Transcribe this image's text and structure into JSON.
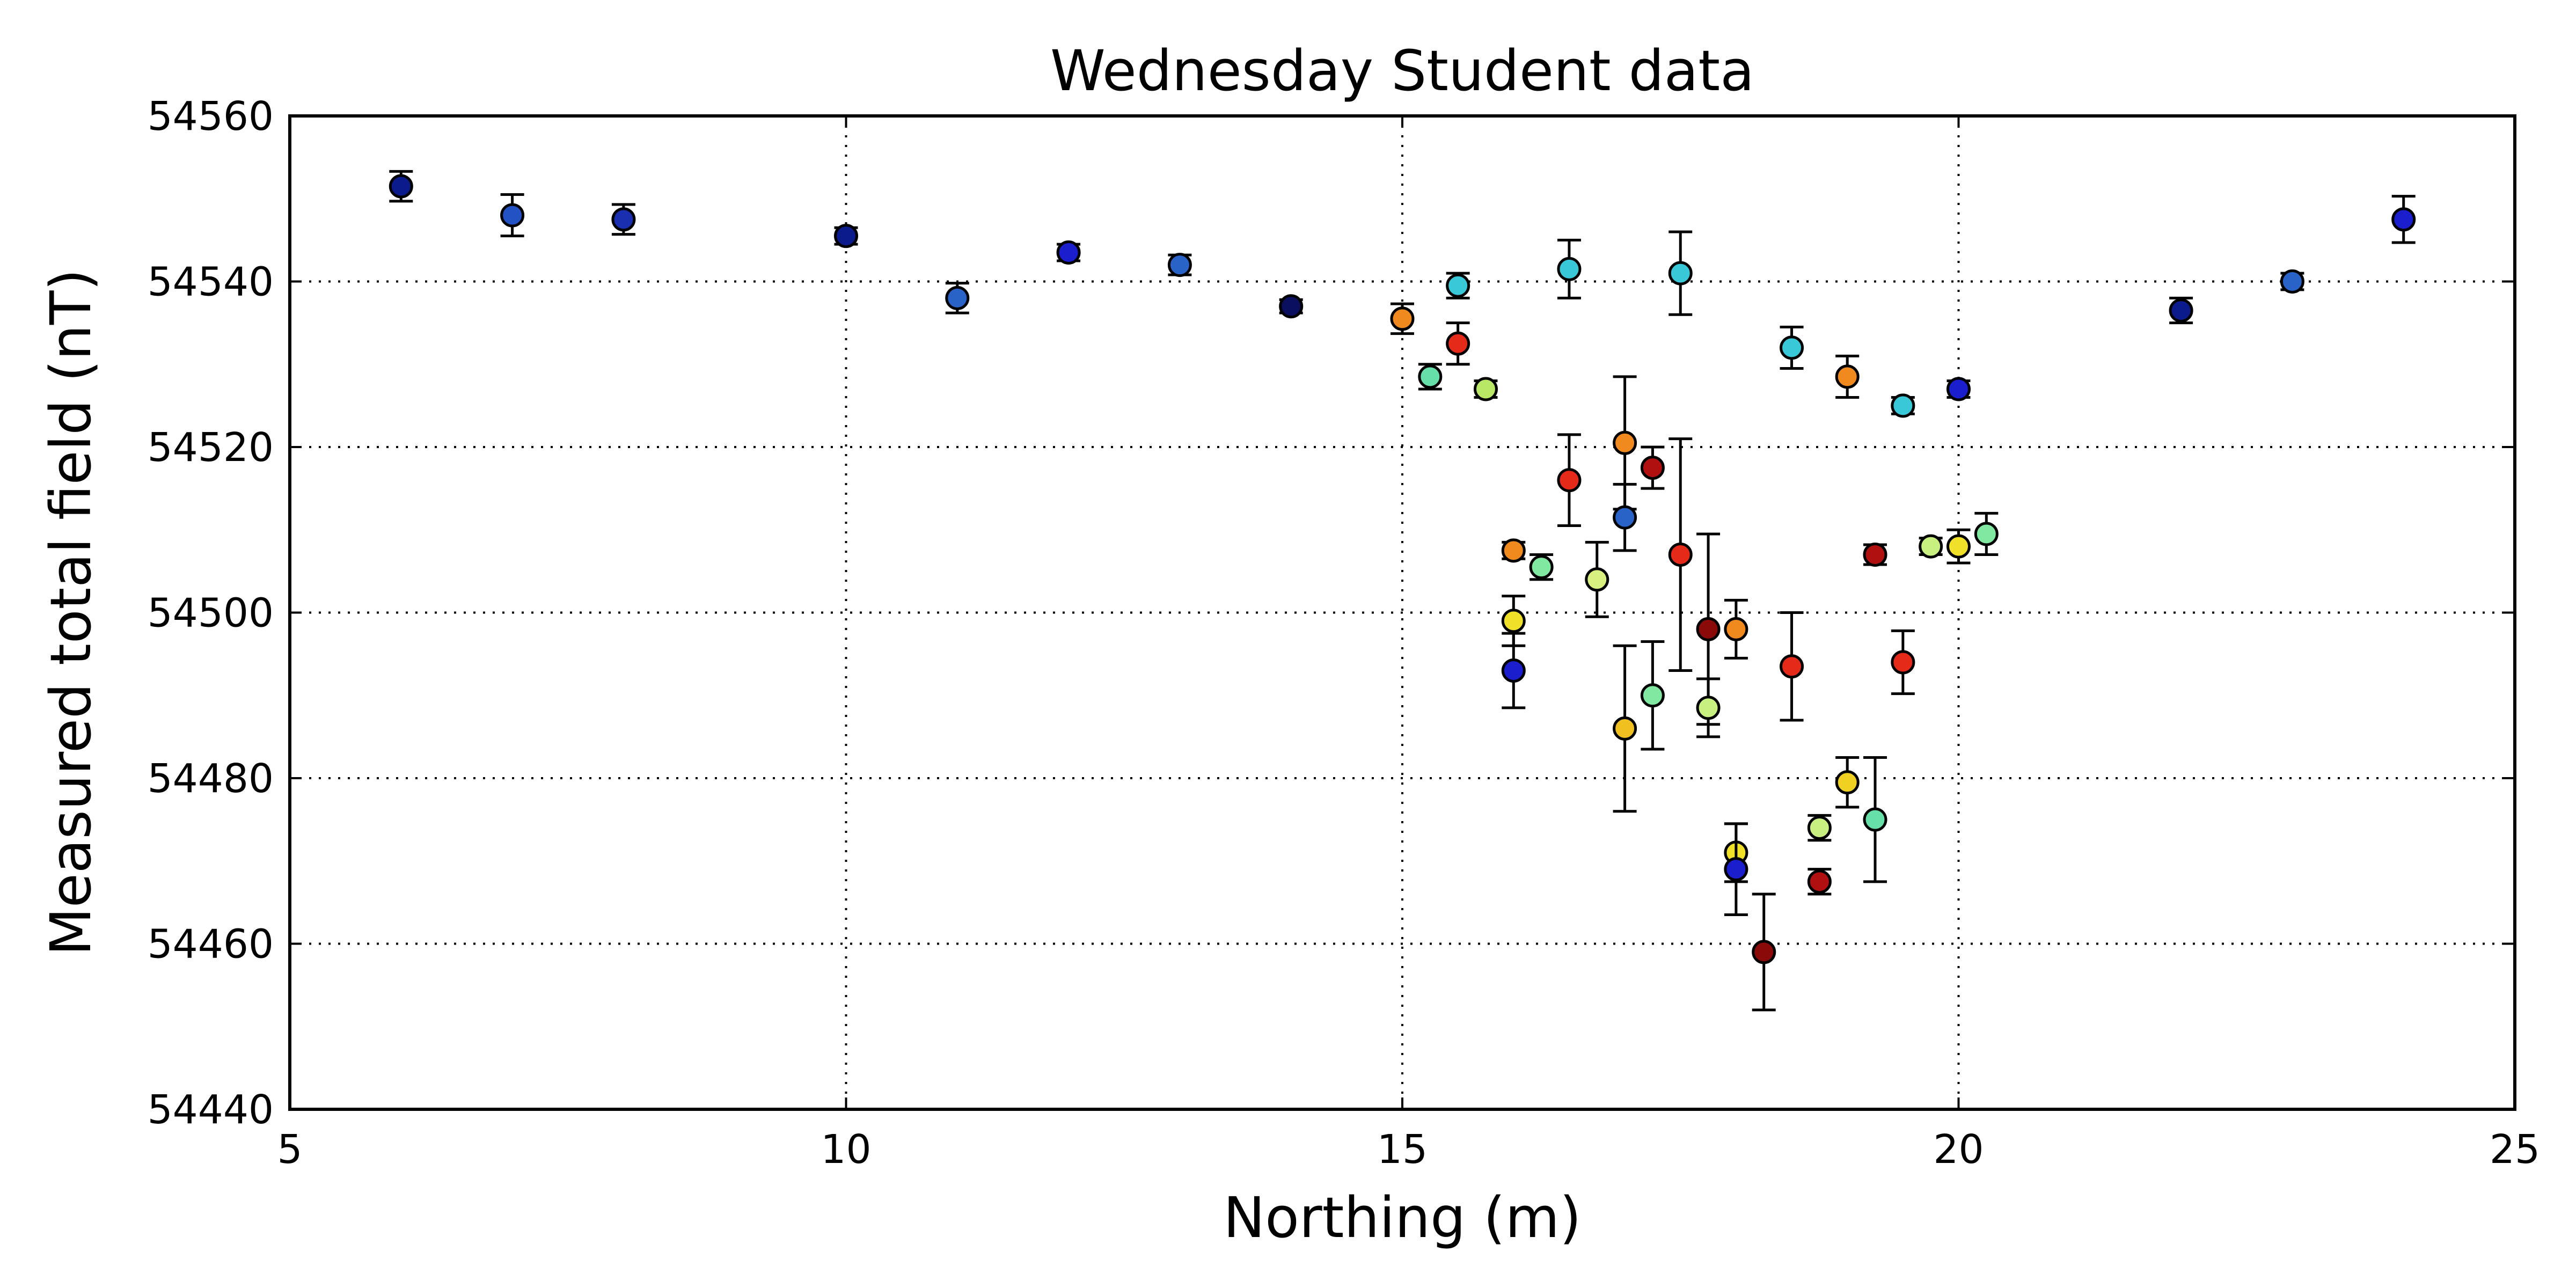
{
  "chart_data": {
    "type": "scatter",
    "title": "Wednesday Student data",
    "xlabel": "Northing (m)",
    "ylabel": "Measured total field (nT)",
    "xlim": [
      5,
      25
    ],
    "ylim": [
      54440,
      54560
    ],
    "xticks": [
      5,
      10,
      15,
      20,
      25
    ],
    "yticks": [
      54440,
      54460,
      54480,
      54500,
      54520,
      54540,
      54560
    ],
    "grid": true,
    "marker": "circle with error bars",
    "points": [
      {
        "x": 6,
        "y": 54551.5,
        "err": 1.8,
        "color": "#0c1b8c"
      },
      {
        "x": 7,
        "y": 54548,
        "err": 2.5,
        "color": "#2252c4"
      },
      {
        "x": 8,
        "y": 54547.5,
        "err": 1.8,
        "color": "#1a2fb0"
      },
      {
        "x": 10,
        "y": 54545.5,
        "err": 1.0,
        "color": "#0c1b8c"
      },
      {
        "x": 11,
        "y": 54538,
        "err": 1.8,
        "color": "#2a63c8"
      },
      {
        "x": 12,
        "y": 54543.5,
        "err": 1.0,
        "color": "#1a1ecc"
      },
      {
        "x": 13,
        "y": 54542,
        "err": 1.2,
        "color": "#2a63c8"
      },
      {
        "x": 14,
        "y": 54537,
        "err": 0.8,
        "color": "#0a0f5e"
      },
      {
        "x": 15,
        "y": 54535.5,
        "err": 1.8,
        "color": "#f08a1e"
      },
      {
        "x": 15.25,
        "y": 54528.5,
        "err": 1.5,
        "color": "#66e0a8"
      },
      {
        "x": 15.5,
        "y": 54539.5,
        "err": 1.5,
        "color": "#38c8d8"
      },
      {
        "x": 15.5,
        "y": 54532.5,
        "err": 2.5,
        "color": "#e62a1a"
      },
      {
        "x": 15.75,
        "y": 54527,
        "err": 1.0,
        "color": "#b8e866"
      },
      {
        "x": 16,
        "y": 54507.5,
        "err": 1.0,
        "color": "#f08a1e"
      },
      {
        "x": 16,
        "y": 54499,
        "err": 3.0,
        "color": "#f0e02a"
      },
      {
        "x": 16,
        "y": 54493,
        "err": 4.5,
        "color": "#1a1ecc"
      },
      {
        "x": 16.25,
        "y": 54505.5,
        "err": 1.5,
        "color": "#80e8a0"
      },
      {
        "x": 16.5,
        "y": 54541.5,
        "err": 3.5,
        "color": "#38c8d8"
      },
      {
        "x": 16.5,
        "y": 54516,
        "err": 5.5,
        "color": "#e62a1a"
      },
      {
        "x": 16.75,
        "y": 54504,
        "err": 4.5,
        "color": "#d8f080"
      },
      {
        "x": 17,
        "y": 54520.5,
        "err": 8.0,
        "color": "#f08a1e"
      },
      {
        "x": 17,
        "y": 54511.5,
        "err": 4.0,
        "color": "#2a63c8"
      },
      {
        "x": 17,
        "y": 54486,
        "err": 10.0,
        "color": "#f0c020"
      },
      {
        "x": 17.25,
        "y": 54517.5,
        "err": 2.5,
        "color": "#b01010"
      },
      {
        "x": 17.25,
        "y": 54490,
        "err": 6.5,
        "color": "#80e8a0"
      },
      {
        "x": 17.5,
        "y": 54541,
        "err": 5.0,
        "color": "#38c8d8"
      },
      {
        "x": 17.5,
        "y": 54507,
        "err": 14.0,
        "color": "#e62a1a"
      },
      {
        "x": 17.75,
        "y": 54498,
        "err": 11.5,
        "color": "#8a0a0a"
      },
      {
        "x": 17.75,
        "y": 54488.5,
        "err": 3.5,
        "color": "#c8f080"
      },
      {
        "x": 18,
        "y": 54498,
        "err": 3.5,
        "color": "#f08a1e"
      },
      {
        "x": 18,
        "y": 54471,
        "err": 3.5,
        "color": "#f0e02a"
      },
      {
        "x": 18,
        "y": 54469,
        "err": 5.5,
        "color": "#1a1ecc"
      },
      {
        "x": 18.25,
        "y": 54459,
        "err": 7.0,
        "color": "#8a0a0a"
      },
      {
        "x": 18.5,
        "y": 54532,
        "err": 2.5,
        "color": "#38c8d8"
      },
      {
        "x": 18.5,
        "y": 54493.5,
        "err": 6.5,
        "color": "#e62a1a"
      },
      {
        "x": 18.75,
        "y": 54474,
        "err": 1.5,
        "color": "#c8f080"
      },
      {
        "x": 18.75,
        "y": 54467.5,
        "err": 1.5,
        "color": "#b01010"
      },
      {
        "x": 19,
        "y": 54528.5,
        "err": 2.5,
        "color": "#f08a1e"
      },
      {
        "x": 19,
        "y": 54479.5,
        "err": 3.0,
        "color": "#f0d020"
      },
      {
        "x": 19.25,
        "y": 54507,
        "err": 1.2,
        "color": "#b01010"
      },
      {
        "x": 19.25,
        "y": 54475,
        "err": 7.5,
        "color": "#66e0a8"
      },
      {
        "x": 19.5,
        "y": 54525,
        "err": 1.0,
        "color": "#38c8d8"
      },
      {
        "x": 19.5,
        "y": 54494,
        "err": 3.8,
        "color": "#e62a1a"
      },
      {
        "x": 19.75,
        "y": 54508,
        "err": 1.0,
        "color": "#c8f080"
      },
      {
        "x": 20,
        "y": 54527,
        "err": 1.0,
        "color": "#1a1ecc"
      },
      {
        "x": 20,
        "y": 54508,
        "err": 2.0,
        "color": "#f0e02a"
      },
      {
        "x": 20.25,
        "y": 54509.5,
        "err": 2.5,
        "color": "#80e8a0"
      },
      {
        "x": 22,
        "y": 54536.5,
        "err": 1.5,
        "color": "#0c1b8c"
      },
      {
        "x": 23,
        "y": 54540,
        "err": 1.0,
        "color": "#2a63c8"
      },
      {
        "x": 24,
        "y": 54547.5,
        "err": 2.8,
        "color": "#1a1ecc"
      }
    ]
  }
}
